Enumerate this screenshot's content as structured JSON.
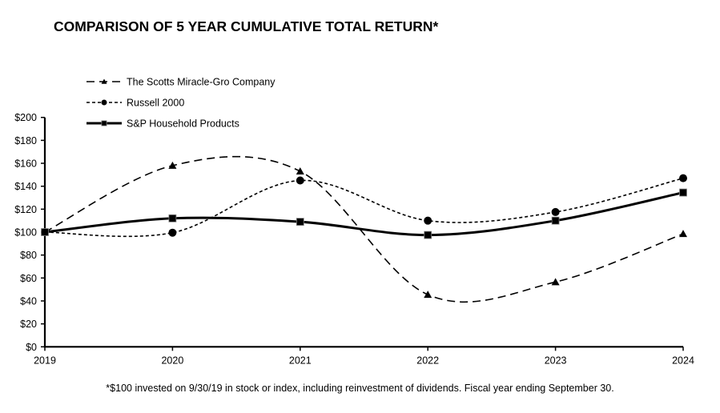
{
  "chart_data": {
    "type": "line",
    "title": "COMPARISON OF 5 YEAR CUMULATIVE TOTAL RETURN*",
    "footnote": "*$100 invested on 9/30/19 in stock or index, including reinvestment of dividends. Fiscal year ending September 30.",
    "xlabel": "",
    "ylabel": "",
    "categories": [
      "2019",
      "2020",
      "2021",
      "2022",
      "2023",
      "2024"
    ],
    "ylim": [
      0,
      200
    ],
    "yticks": [
      0,
      20,
      40,
      60,
      80,
      100,
      120,
      140,
      160,
      180,
      200
    ],
    "ytick_labels": [
      "$0",
      "$20",
      "$40",
      "$60",
      "$80",
      "$100",
      "$120",
      "$140",
      "$160",
      "$180",
      "$200"
    ],
    "grid": false,
    "smoothed": true,
    "legend_position": "top-left",
    "series": [
      {
        "name": "The Scotts Miracle-Gro Company",
        "marker": "triangle",
        "line_style": "long-dash",
        "color": "#000000",
        "values": [
          100,
          158,
          153,
          45.5,
          56.5,
          98.5
        ]
      },
      {
        "name": "Russell 2000",
        "marker": "circle",
        "line_style": "short-dash",
        "color": "#000000",
        "values": [
          100,
          99.5,
          145,
          110,
          117.5,
          147
        ]
      },
      {
        "name": "S&P Household Products",
        "marker": "square",
        "line_style": "solid",
        "color": "#000000",
        "values": [
          100,
          112,
          109,
          97.5,
          110,
          134.5
        ]
      }
    ]
  }
}
